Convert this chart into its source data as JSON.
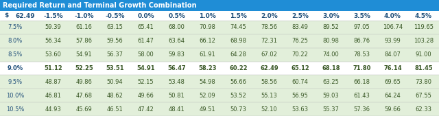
{
  "title": "Required Return and Terminal Growth Combination",
  "title_bg": "#1F8DD6",
  "title_fg": "#FFFFFF",
  "header_fg": "#1F4E79",
  "row_label_col": "$",
  "col0_label": "62.49",
  "col_headers": [
    "-1.5%",
    "-1.0%",
    "-0.5%",
    "0.0%",
    "0.5%",
    "1.0%",
    "1.5%",
    "2.0%",
    "2.5%",
    "3.0%",
    "3.5%",
    "4.0%",
    "4.5%"
  ],
  "row_headers": [
    "7.5%",
    "8.0%",
    "8.5%",
    "9.0%",
    "9.5%",
    "10.0%",
    "10.5%"
  ],
  "highlight_row": "9.0%",
  "cell_bg_normal": "#E2EFDA",
  "cell_bg_highlight": "#FFFFFF",
  "cell_fg": "#375623",
  "row_header_fg": "#1F4E79",
  "values": [
    [
      59.39,
      61.16,
      63.15,
      65.41,
      68.0,
      70.98,
      74.45,
      78.56,
      83.49,
      89.52,
      97.05,
      106.74,
      119.65
    ],
    [
      56.34,
      57.86,
      59.56,
      61.47,
      63.64,
      66.12,
      68.98,
      72.31,
      76.25,
      80.98,
      86.76,
      93.99,
      103.28
    ],
    [
      53.6,
      54.91,
      56.37,
      58.0,
      59.83,
      61.91,
      64.28,
      67.02,
      70.22,
      74.0,
      78.53,
      84.07,
      91.0
    ],
    [
      51.12,
      52.25,
      53.51,
      54.91,
      56.47,
      58.23,
      60.22,
      62.49,
      65.12,
      68.18,
      71.8,
      76.14,
      81.45
    ],
    [
      48.87,
      49.86,
      50.94,
      52.15,
      53.48,
      54.98,
      56.66,
      58.56,
      60.74,
      63.25,
      66.18,
      69.65,
      73.8
    ],
    [
      46.81,
      47.68,
      48.62,
      49.66,
      50.81,
      52.09,
      53.52,
      55.13,
      56.95,
      59.03,
      61.43,
      64.24,
      67.55
    ],
    [
      44.93,
      45.69,
      46.51,
      47.42,
      48.41,
      49.51,
      50.73,
      52.1,
      53.63,
      55.37,
      57.36,
      59.66,
      62.33
    ]
  ]
}
